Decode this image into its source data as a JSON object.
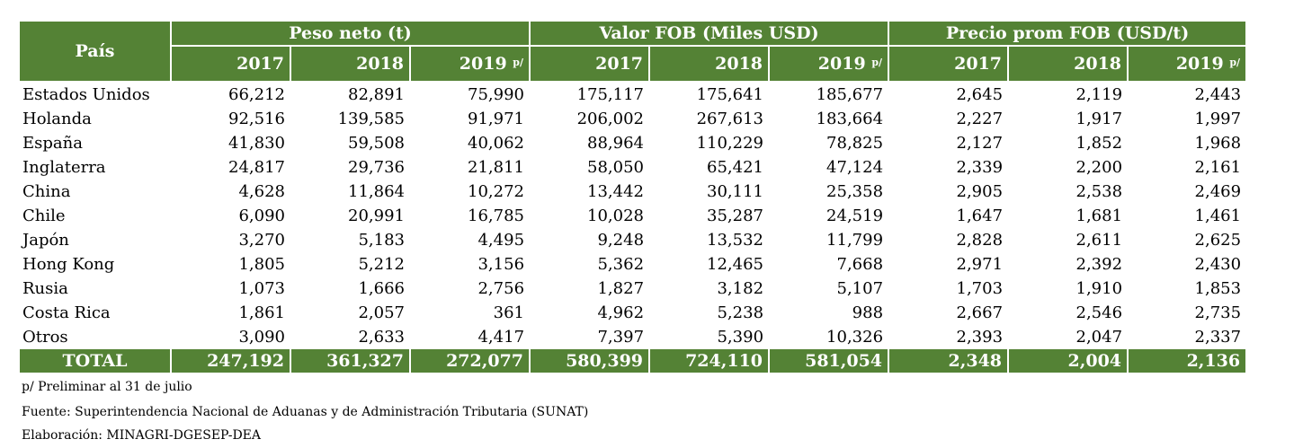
{
  "table": {
    "country_header": "País",
    "groups": [
      {
        "label": "Peso neto (t)"
      },
      {
        "label": "Valor FOB (Miles USD)"
      },
      {
        "label": "Precio prom FOB (USD/t)"
      }
    ],
    "years": [
      "2017",
      "2018",
      "2019",
      "2017",
      "2018",
      "2019",
      "2017",
      "2018",
      "2019"
    ],
    "year_marks": [
      "",
      "",
      "p/",
      "",
      "",
      "p/",
      "",
      "",
      "p/"
    ],
    "rows": [
      {
        "country": "Estados Unidos",
        "values": [
          "66,212",
          "82,891",
          "75,990",
          "175,117",
          "175,641",
          "185,677",
          "2,645",
          "2,119",
          "2,443"
        ]
      },
      {
        "country": "Holanda",
        "values": [
          "92,516",
          "139,585",
          "91,971",
          "206,002",
          "267,613",
          "183,664",
          "2,227",
          "1,917",
          "1,997"
        ]
      },
      {
        "country": "España",
        "values": [
          "41,830",
          "59,508",
          "40,062",
          "88,964",
          "110,229",
          "78,825",
          "2,127",
          "1,852",
          "1,968"
        ]
      },
      {
        "country": "Inglaterra",
        "values": [
          "24,817",
          "29,736",
          "21,811",
          "58,050",
          "65,421",
          "47,124",
          "2,339",
          "2,200",
          "2,161"
        ]
      },
      {
        "country": "China",
        "values": [
          "4,628",
          "11,864",
          "10,272",
          "13,442",
          "30,111",
          "25,358",
          "2,905",
          "2,538",
          "2,469"
        ]
      },
      {
        "country": "Chile",
        "values": [
          "6,090",
          "20,991",
          "16,785",
          "10,028",
          "35,287",
          "24,519",
          "1,647",
          "1,681",
          "1,461"
        ]
      },
      {
        "country": "Japón",
        "values": [
          "3,270",
          "5,183",
          "4,495",
          "9,248",
          "13,532",
          "11,799",
          "2,828",
          "2,611",
          "2,625"
        ]
      },
      {
        "country": "Hong Kong",
        "values": [
          "1,805",
          "5,212",
          "3,156",
          "5,362",
          "12,465",
          "7,668",
          "2,971",
          "2,392",
          "2,430"
        ]
      },
      {
        "country": "Rusia",
        "values": [
          "1,073",
          "1,666",
          "2,756",
          "1,827",
          "3,182",
          "5,107",
          "1,703",
          "1,910",
          "1,853"
        ]
      },
      {
        "country": "Costa Rica",
        "values": [
          "1,861",
          "2,057",
          "361",
          "4,962",
          "5,238",
          "988",
          "2,667",
          "2,546",
          "2,735"
        ]
      },
      {
        "country": "Otros",
        "values": [
          "3,090",
          "2,633",
          "4,417",
          "7,397",
          "5,390",
          "10,326",
          "2,393",
          "2,047",
          "2,337"
        ]
      }
    ],
    "total": {
      "label": "TOTAL",
      "values": [
        "247,192",
        "361,327",
        "272,077",
        "580,399",
        "724,110",
        "581,054",
        "2,348",
        "2,004",
        "2,136"
      ]
    }
  },
  "notes": {
    "preliminary": "p/ Preliminar al 31 de julio",
    "source": "Fuente: Superintendencia Nacional de Aduanas y de Administración Tributaria (SUNAT)",
    "elaboration": "Elaboración: MINAGRI-DGESEP-DEA"
  },
  "colors": {
    "header_bg": "#548235",
    "header_text": "#ffffff"
  }
}
